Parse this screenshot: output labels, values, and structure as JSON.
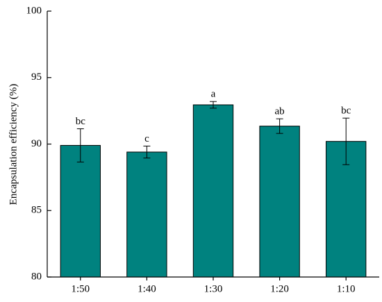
{
  "chart_data": {
    "type": "bar",
    "y_label": "Encapsulation efficiency (%)",
    "categories": [
      "1:50",
      "1:40",
      "1:30",
      "1:20",
      "1:10"
    ],
    "values": [
      89.9,
      89.4,
      92.95,
      91.35,
      90.2
    ],
    "errors": [
      1.25,
      0.45,
      0.25,
      0.55,
      1.75
    ],
    "letters": [
      "bc",
      "c",
      "a",
      "ab",
      "bc"
    ],
    "color": "#00827f",
    "ylim": [
      80,
      100
    ],
    "yticks": [
      80,
      85,
      90,
      95,
      100
    ]
  }
}
